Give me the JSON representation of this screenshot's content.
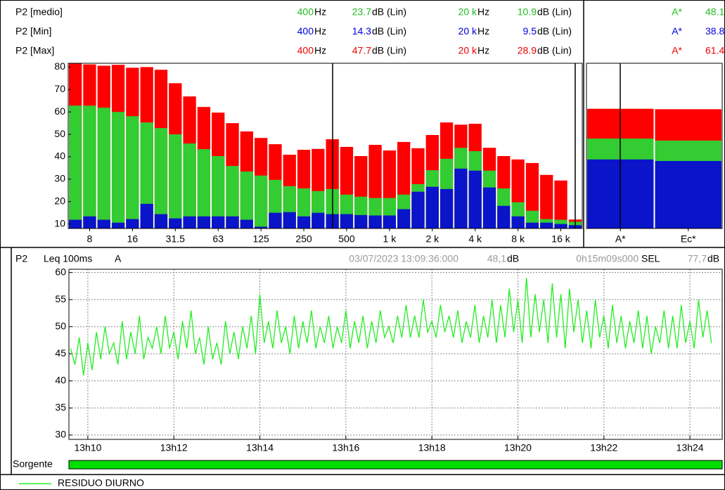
{
  "header": {
    "rows": [
      {
        "label": "P2 [medio]",
        "color": "#22bb22",
        "f1": "400",
        "f1_unit": "Hz",
        "v1": 23.7,
        "v1_unit": "dB (Lin)",
        "f2": "20 k",
        "f2_unit": "Hz",
        "v2": 10.9,
        "v2_unit": "dB (Lin)",
        "band": "A*",
        "total": 48.1
      },
      {
        "label": "P2 [Min]",
        "color": "#0000dd",
        "f1": "400",
        "f1_unit": "Hz",
        "v1": 14.3,
        "v1_unit": "dB (Lin)",
        "f2": "20 k",
        "f2_unit": "Hz",
        "v2": 9.5,
        "v2_unit": "dB (Lin)",
        "band": "A*",
        "total": 38.8
      },
      {
        "label": "P2 [Max]",
        "color": "#ee0000",
        "f1": "400",
        "f1_unit": "Hz",
        "v1": 47.7,
        "v1_unit": "dB (Lin)",
        "f2": "20 k",
        "f2_unit": "Hz",
        "v2": 28.9,
        "v2_unit": "dB (Lin)",
        "band": "A*",
        "total": 61.4
      }
    ]
  },
  "status": {
    "channel": "P2",
    "measure": "Leq 100ms",
    "weighting": "A",
    "datetime": "03/07/2023 13:09:36:000",
    "value": "48,1",
    "value_unit": "dB",
    "duration": "0h15m09s000",
    "sel_label": "SEL",
    "sel_value": "77,7",
    "sel_unit": "dB"
  },
  "footer": {
    "source_label": "Sorgente"
  },
  "chart_data": [
    {
      "type": "bar",
      "categories": [
        null,
        "8",
        null,
        null,
        "16",
        null,
        null,
        "31.5",
        null,
        null,
        "63",
        null,
        null,
        "125",
        null,
        null,
        "250",
        null,
        null,
        "500",
        null,
        null,
        "1 k",
        null,
        null,
        "2 k",
        null,
        null,
        "4 k",
        null,
        null,
        "8 k",
        null,
        null,
        "16 k",
        null
      ],
      "series": [
        {
          "color": "#ff0000",
          "values": [
            81.6,
            81.2,
            80.6,
            81,
            79.7,
            80,
            78.8,
            72.8,
            66.9,
            62.2,
            59.7,
            55,
            51.3,
            48.4,
            45.6,
            40.9,
            43.1,
            43.5,
            47.8,
            44.4,
            40.3,
            45.3,
            42.8,
            46.6,
            43.8,
            49.7,
            55.3,
            54.3,
            54.7,
            44,
            40.3,
            38.8,
            37.2,
            31.9,
            29.4,
            12
          ]
        },
        {
          "color": "#33cc33",
          "values": [
            62.8,
            62.8,
            61.9,
            60,
            58.1,
            55.3,
            52.8,
            50,
            45.9,
            43.4,
            40.3,
            35.9,
            33.4,
            31.6,
            29.7,
            26.9,
            25.9,
            24.7,
            25.6,
            23.1,
            22.2,
            21.6,
            21.6,
            23.1,
            27.8,
            34,
            39.1,
            44,
            42.5,
            33.8,
            25.9,
            19.7,
            15.9,
            12.2,
            11.9,
            11
          ]
        },
        {
          "color": "#0a14c8",
          "values": [
            11.9,
            13.4,
            11.9,
            10.6,
            12.2,
            19,
            14.4,
            12.5,
            13.4,
            13.4,
            13.4,
            13.4,
            11.9,
            8.8,
            15,
            15.3,
            13.4,
            15,
            14.4,
            14.4,
            14,
            13.8,
            13.8,
            16.6,
            24.4,
            26.6,
            25.6,
            34.7,
            33.8,
            26.3,
            18.1,
            13.4,
            10.6,
            10.6,
            10,
            9.5
          ]
        }
      ],
      "ylim": [
        8,
        81.7
      ],
      "yticks": [
        10,
        20,
        30,
        40,
        50,
        60,
        70,
        80
      ],
      "grid": false
    },
    {
      "type": "bar",
      "categories": [
        "A*",
        "Ec*"
      ],
      "series": [
        {
          "color": "#ff0000",
          "values": [
            61.4,
            61.2
          ]
        },
        {
          "color": "#33cc33",
          "values": [
            48.1,
            47.2
          ]
        },
        {
          "color": "#0a14c8",
          "values": [
            38.8,
            38.1
          ]
        }
      ],
      "ylim": [
        8,
        81.7
      ],
      "grid": false
    },
    {
      "type": "line",
      "x": [
        9.6,
        9.7,
        9.8,
        9.9,
        10.0,
        10.1,
        10.2,
        10.3,
        10.4,
        10.5,
        10.6,
        10.7,
        10.8,
        10.9,
        11.0,
        11.1,
        11.2,
        11.3,
        11.4,
        11.5,
        11.6,
        11.7,
        11.8,
        11.9,
        12.0,
        12.1,
        12.2,
        12.3,
        12.4,
        12.5,
        12.6,
        12.7,
        12.8,
        12.9,
        13.0,
        13.1,
        13.2,
        13.3,
        13.4,
        13.5,
        13.6,
        13.7,
        13.8,
        13.9,
        14.0,
        14.1,
        14.2,
        14.3,
        14.4,
        14.5,
        14.6,
        14.7,
        14.8,
        14.9,
        15.0,
        15.1,
        15.2,
        15.3,
        15.4,
        15.5,
        15.6,
        15.7,
        15.8,
        15.9,
        16.0,
        16.1,
        16.2,
        16.3,
        16.4,
        16.5,
        16.6,
        16.7,
        16.8,
        16.9,
        17.0,
        17.1,
        17.2,
        17.3,
        17.4,
        17.5,
        17.6,
        17.7,
        17.8,
        17.9,
        18.0,
        18.1,
        18.2,
        18.3,
        18.4,
        18.5,
        18.6,
        18.7,
        18.8,
        18.9,
        19.0,
        19.1,
        19.2,
        19.3,
        19.4,
        19.5,
        19.6,
        19.7,
        19.8,
        19.9,
        20.0,
        20.1,
        20.2,
        20.3,
        20.4,
        20.5,
        20.6,
        20.7,
        20.8,
        20.9,
        21.0,
        21.1,
        21.2,
        21.3,
        21.4,
        21.5,
        21.6,
        21.7,
        21.8,
        21.9,
        22.0,
        22.1,
        22.2,
        22.3,
        22.4,
        22.5,
        22.6,
        22.7,
        22.8,
        22.9,
        23.0,
        23.1,
        23.2,
        23.3,
        23.4,
        23.5,
        23.6,
        23.7,
        23.8,
        23.9,
        24.0,
        24.1,
        24.2,
        24.3,
        24.4,
        24.5
      ],
      "series": [
        {
          "name": "RESIDUO DIURNO",
          "color": "#22ee22",
          "values": [
            46,
            43,
            48,
            41,
            47,
            42,
            49,
            44,
            50,
            45,
            47,
            43,
            51,
            44,
            49,
            45,
            52,
            44,
            48,
            46,
            50,
            45,
            52,
            46,
            49,
            44,
            51,
            46,
            53,
            45,
            48,
            43,
            50,
            44,
            47,
            43,
            51,
            45,
            49,
            44,
            50,
            46,
            52,
            45,
            56,
            47,
            51,
            46,
            53,
            47,
            50,
            45,
            52,
            46,
            51,
            47,
            53,
            46,
            50,
            47,
            52,
            46,
            50,
            47,
            53,
            46,
            51,
            47,
            52,
            46,
            51,
            47,
            53,
            48,
            50,
            47,
            52,
            48,
            54,
            48,
            52,
            48,
            55,
            49,
            51,
            48,
            54,
            49,
            52,
            48,
            53,
            47,
            51,
            48,
            54,
            47,
            52,
            48,
            55,
            47,
            54,
            48,
            57,
            49,
            55,
            47,
            59,
            48,
            56,
            49,
            55,
            47,
            58,
            48,
            56,
            46,
            57,
            49,
            55,
            47,
            53,
            46,
            55,
            48,
            52,
            46,
            54,
            47,
            52,
            46,
            51,
            47,
            53,
            46,
            52,
            45,
            50,
            47,
            53,
            46,
            52,
            46,
            54,
            47,
            51,
            46,
            55,
            48,
            53,
            47
          ]
        }
      ],
      "xlim": [
        9.56,
        24.75
      ],
      "xticks": [
        {
          "value": 10,
          "label": "13h10"
        },
        {
          "value": 12,
          "label": "13h12"
        },
        {
          "value": 14,
          "label": "13h14"
        },
        {
          "value": 16,
          "label": "13h16"
        },
        {
          "value": 18,
          "label": "13h18"
        },
        {
          "value": 20,
          "label": "13h20"
        },
        {
          "value": 22,
          "label": "13h22"
        },
        {
          "value": 24,
          "label": "13h24"
        }
      ],
      "ylim": [
        29.2,
        60.6
      ],
      "yticks": [
        30,
        35,
        40,
        45,
        50,
        55,
        60
      ],
      "grid": true
    }
  ]
}
